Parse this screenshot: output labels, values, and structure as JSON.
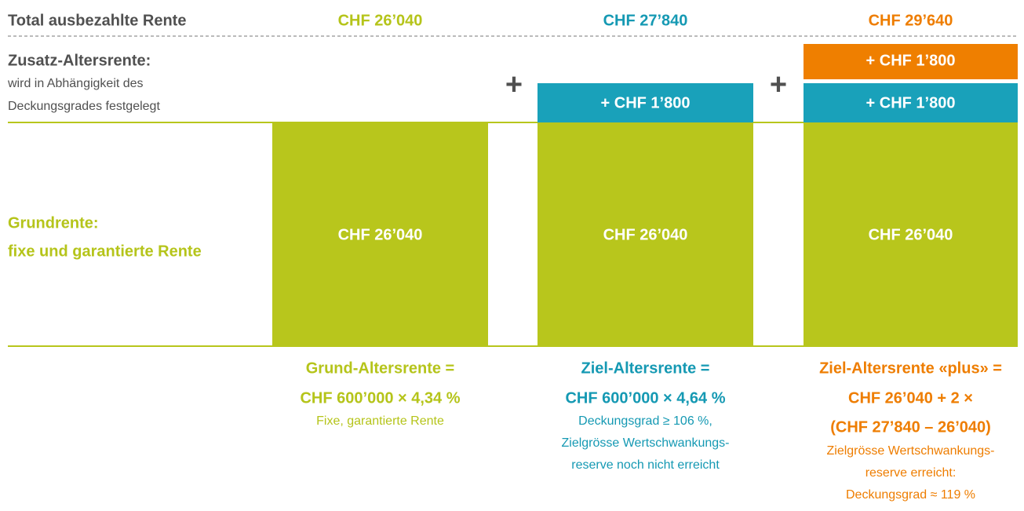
{
  "header": {
    "title": "Total ausbezahlte Rente",
    "totals": [
      "CHF 26’040",
      "CHF 27’840",
      "CHF 29’640"
    ]
  },
  "supplement": {
    "title": "Zusatz-Altersrente:",
    "description": [
      "wird in Abhängigkeit des",
      "Deckungsgrades festgelegt"
    ]
  },
  "base": {
    "label": [
      "Grundrente:",
      "fixe und garantierte Rente"
    ]
  },
  "operators": [
    "+",
    "+"
  ],
  "columns": [
    {
      "base": "CHF 26’040",
      "supplements": [],
      "caption": [
        "Grund-Altersrente =",
        "CHF 600’000 × 4,34 %"
      ],
      "notes": [
        "Fixe, garantierte Rente"
      ]
    },
    {
      "base": "CHF 26’040",
      "supplements": [
        "+ CHF 1’800"
      ],
      "caption": [
        "Ziel-Altersrente =",
        "CHF 600’000 × 4,64 %"
      ],
      "notes": [
        "Deckungsgrad ≥ 106 %,",
        "Zielgrösse Wertschwankungs-",
        "reserve noch nicht erreicht"
      ]
    },
    {
      "base": "CHF 26’040",
      "supplements": [
        "+ CHF 1’800",
        "+ CHF 1’800"
      ],
      "caption": [
        "Ziel-Altersrente «plus» =",
        "CHF 26’040 + 2 ×",
        "(CHF 27’840 – 26’040)"
      ],
      "notes": [
        "Zielgrösse Wertschwankungs-",
        "reserve erreicht:",
        "Deckungsgrad ≈ 119 %"
      ]
    }
  ]
}
